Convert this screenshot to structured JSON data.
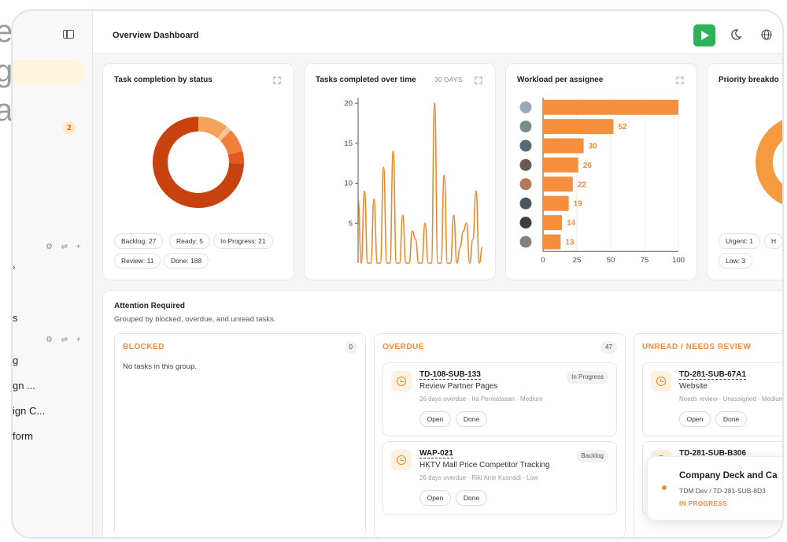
{
  "background_fragments": [
    "e",
    "g",
    "ac"
  ],
  "sidebar": {
    "badge": "2",
    "nav_fragments": [
      "s",
      "g",
      "gn ...",
      "ign C...",
      "form"
    ]
  },
  "topbar": {
    "title": "Overview Dashboard"
  },
  "cards": {
    "status": {
      "title": "Task completion by status",
      "chips": [
        "Backlog: 27",
        "Ready: 5",
        "In Progress: 21",
        "Review: 11",
        "Done: 188"
      ]
    },
    "completed": {
      "title": "Tasks completed over time",
      "range_label": "30 DAYS"
    },
    "workload": {
      "title": "Workload per assignee"
    },
    "priority": {
      "title": "Priority breakdo",
      "chips": [
        "Urgent: 1",
        "H",
        "Low: 3"
      ]
    }
  },
  "chart_data": [
    {
      "type": "pie",
      "title": "Task completion by status",
      "categories": [
        "Backlog",
        "Ready",
        "In Progress",
        "Review",
        "Done"
      ],
      "values": [
        27,
        5,
        21,
        11,
        188
      ],
      "colors": [
        "#f3a35a",
        "#f8c49a",
        "#f0803c",
        "#e5581f",
        "#c8420f"
      ]
    },
    {
      "type": "line",
      "title": "Tasks completed over time",
      "x": [
        1,
        2,
        3,
        4,
        5,
        6,
        7,
        8,
        9,
        10,
        11,
        12,
        13,
        14,
        15,
        16,
        17,
        18,
        19,
        20,
        21,
        22,
        23,
        24,
        25,
        26,
        27,
        28,
        29,
        30,
        31,
        32,
        33,
        34,
        35,
        36,
        37,
        38,
        39,
        40
      ],
      "y": [
        8,
        0,
        9,
        0,
        0,
        8,
        0,
        0,
        12,
        0,
        0,
        14,
        0,
        0,
        6,
        0,
        0,
        4,
        3,
        0,
        0,
        5,
        0,
        0,
        20,
        0,
        0,
        11,
        0,
        0,
        6,
        0,
        2,
        4,
        5,
        0,
        3,
        9,
        0,
        2
      ],
      "yticks": [
        5,
        10,
        15,
        20
      ],
      "ylim": [
        0,
        20.5
      ]
    },
    {
      "type": "bar",
      "title": "Workload per assignee",
      "orientation": "horizontal",
      "values": [
        100,
        52,
        30,
        26,
        22,
        19,
        14,
        13
      ],
      "labels": [
        "",
        "52",
        "30",
        "26",
        "22",
        "19",
        "14",
        "13"
      ],
      "xticks": [
        0,
        25,
        50,
        75,
        100
      ],
      "xlim": [
        0,
        100
      ]
    }
  ],
  "attention": {
    "title": "Attention Required",
    "subtitle": "Grouped by blocked, overdue, and unread tasks.",
    "groups": {
      "blocked": {
        "title": "BLOCKED",
        "count": "0",
        "empty": "No tasks in this group."
      },
      "overdue": {
        "title": "OVERDUE",
        "count": "47",
        "tasks": [
          {
            "id": "TD-108-SUB-133",
            "name": "Review Partner Pages",
            "meta": "26 days overdue · Ira Permatasari · Medium",
            "status": "In Progress",
            "open": "Open",
            "done": "Done"
          },
          {
            "id": "WAP-021",
            "name": "HKTV Mall Price Competitor Tracking",
            "meta": "26 days overdue · Riki Amir Kusnadi · Low",
            "status": "Backlog",
            "open": "Open",
            "done": "Done"
          }
        ]
      },
      "unread": {
        "title": "UNREAD / NEEDS REVIEW",
        "tasks": [
          {
            "id": "TD-281-SUB-67A1",
            "name": "Website",
            "meta": "Needs review · Unassigned · Medium",
            "open": "Open",
            "done": "Done"
          },
          {
            "id": "TD-281-SUB-B306"
          }
        ]
      }
    }
  },
  "toast": {
    "title": "Company Deck and Ca",
    "path": "TDM Dev / TD-281-SUB-8D3",
    "status": "IN PROGRESS"
  },
  "colors": {
    "accent": "#ef8b3d",
    "play": "#2db25a"
  }
}
